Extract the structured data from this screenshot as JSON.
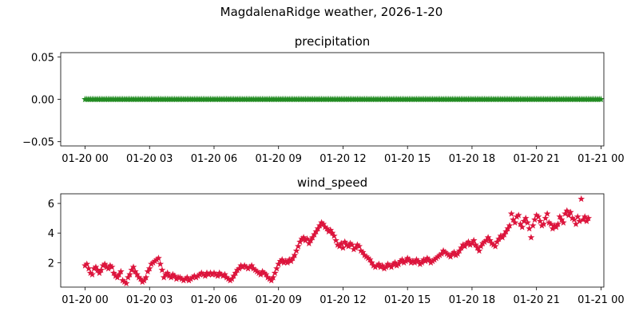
{
  "figure": {
    "suptitle": "MagdalenaRidge weather, 2026-1-20"
  },
  "chart_data": [
    {
      "type": "scatter",
      "title": "precipitation",
      "marker": "star",
      "color": "#228b22",
      "xlim": [
        "2026-01-19T22:52",
        "2026-01-21T00:08"
      ],
      "ylim": [
        -0.055,
        0.055
      ],
      "xticks": [
        {
          "value": "2026-01-20T00:00",
          "label": "01-20 00"
        },
        {
          "value": "2026-01-20T03:00",
          "label": "01-20 03"
        },
        {
          "value": "2026-01-20T06:00",
          "label": "01-20 06"
        },
        {
          "value": "2026-01-20T09:00",
          "label": "01-20 09"
        },
        {
          "value": "2026-01-20T12:00",
          "label": "01-20 12"
        },
        {
          "value": "2026-01-20T15:00",
          "label": "01-20 15"
        },
        {
          "value": "2026-01-20T18:00",
          "label": "01-20 18"
        },
        {
          "value": "2026-01-20T21:00",
          "label": "01-20 21"
        },
        {
          "value": "2026-01-21T00:00",
          "label": "01-21 00"
        }
      ],
      "yticks": [
        {
          "value": -0.05,
          "label": "−0.05"
        },
        {
          "value": 0.0,
          "label": "0.00"
        },
        {
          "value": 0.05,
          "label": "0.05"
        }
      ],
      "series": [
        {
          "x_start": "2026-01-20T00:00",
          "x_step_minutes": 5,
          "y": [
            0,
            0,
            0,
            0,
            0,
            0,
            0,
            0,
            0,
            0,
            0,
            0,
            0,
            0,
            0,
            0,
            0,
            0,
            0,
            0,
            0,
            0,
            0,
            0,
            0,
            0,
            0,
            0,
            0,
            0,
            0,
            0,
            0,
            0,
            0,
            0,
            0,
            0,
            0,
            0,
            0,
            0,
            0,
            0,
            0,
            0,
            0,
            0,
            0,
            0,
            0,
            0,
            0,
            0,
            0,
            0,
            0,
            0,
            0,
            0,
            0,
            0,
            0,
            0,
            0,
            0,
            0,
            0,
            0,
            0,
            0,
            0,
            0,
            0,
            0,
            0,
            0,
            0,
            0,
            0,
            0,
            0,
            0,
            0,
            0,
            0,
            0,
            0,
            0,
            0,
            0,
            0,
            0,
            0,
            0,
            0,
            0,
            0,
            0,
            0,
            0,
            0,
            0,
            0,
            0,
            0,
            0,
            0,
            0,
            0,
            0,
            0,
            0,
            0,
            0,
            0,
            0,
            0,
            0,
            0,
            0,
            0,
            0,
            0,
            0,
            0,
            0,
            0,
            0,
            0,
            0,
            0,
            0,
            0,
            0,
            0,
            0,
            0,
            0,
            0,
            0,
            0,
            0,
            0,
            0,
            0,
            0,
            0,
            0,
            0,
            0,
            0,
            0,
            0,
            0,
            0,
            0,
            0,
            0,
            0,
            0,
            0,
            0,
            0,
            0,
            0,
            0,
            0,
            0,
            0,
            0,
            0,
            0,
            0,
            0,
            0,
            0,
            0,
            0,
            0,
            0,
            0,
            0,
            0,
            0,
            0,
            0,
            0,
            0,
            0,
            0,
            0,
            0,
            0,
            0,
            0,
            0,
            0,
            0,
            0,
            0,
            0,
            0,
            0,
            0,
            0,
            0,
            0,
            0,
            0,
            0,
            0,
            0,
            0,
            0,
            0,
            0,
            0,
            0,
            0,
            0,
            0,
            0,
            0,
            0,
            0,
            0,
            0,
            0,
            0,
            0,
            0,
            0,
            0,
            0,
            0,
            0,
            0,
            0,
            0,
            0,
            0,
            0,
            0,
            0,
            0,
            0,
            0,
            0,
            0,
            0,
            0,
            0,
            0,
            0,
            0,
            0,
            0,
            0,
            0,
            0,
            0,
            0,
            0,
            0,
            0,
            0,
            0,
            0,
            0,
            0,
            0,
            0,
            0,
            0,
            0,
            0,
            0,
            0,
            0,
            0,
            0,
            0,
            0,
            0,
            0,
            0,
            0,
            0
          ]
        }
      ]
    },
    {
      "type": "scatter",
      "title": "wind_speed",
      "marker": "star",
      "color": "#dc143c",
      "xlim": [
        "2026-01-19T22:52",
        "2026-01-21T00:08"
      ],
      "ylim": [
        0.35,
        6.65
      ],
      "xticks": [
        {
          "value": "2026-01-20T00:00",
          "label": "01-20 00"
        },
        {
          "value": "2026-01-20T03:00",
          "label": "01-20 03"
        },
        {
          "value": "2026-01-20T06:00",
          "label": "01-20 06"
        },
        {
          "value": "2026-01-20T09:00",
          "label": "01-20 09"
        },
        {
          "value": "2026-01-20T12:00",
          "label": "01-20 12"
        },
        {
          "value": "2026-01-20T15:00",
          "label": "01-20 15"
        },
        {
          "value": "2026-01-20T18:00",
          "label": "01-20 18"
        },
        {
          "value": "2026-01-20T21:00",
          "label": "01-20 21"
        },
        {
          "value": "2026-01-21T00:00",
          "label": "01-21 00"
        }
      ],
      "yticks": [
        {
          "value": 2,
          "label": "2"
        },
        {
          "value": 4,
          "label": "4"
        },
        {
          "value": 6,
          "label": "6"
        }
      ],
      "series": [
        {
          "x_start": "2026-01-20T00:00",
          "x_step_minutes": 5,
          "y": [
            1.8,
            1.9,
            1.6,
            1.3,
            1.2,
            1.6,
            1.7,
            1.5,
            1.3,
            1.5,
            1.8,
            1.9,
            1.7,
            1.6,
            1.8,
            1.7,
            1.3,
            1.1,
            1.0,
            1.2,
            1.4,
            0.8,
            0.7,
            0.6,
            1.0,
            1.2,
            1.5,
            1.7,
            1.4,
            1.2,
            1.0,
            0.9,
            0.7,
            0.8,
            1.0,
            1.4,
            1.6,
            1.9,
            2.0,
            2.1,
            2.2,
            2.3,
            1.9,
            1.5,
            1.0,
            1.2,
            1.3,
            1.1,
            1.0,
            1.2,
            1.1,
            0.9,
            1.0,
            1.0,
            0.9,
            0.8,
            0.9,
            1.0,
            0.8,
            0.9,
            1.0,
            1.1,
            1.0,
            1.1,
            1.2,
            1.3,
            1.2,
            1.1,
            1.3,
            1.2,
            1.3,
            1.2,
            1.3,
            1.2,
            1.1,
            1.3,
            1.2,
            1.1,
            1.2,
            1.0,
            0.9,
            0.8,
            0.9,
            1.1,
            1.3,
            1.5,
            1.6,
            1.8,
            1.7,
            1.8,
            1.7,
            1.6,
            1.7,
            1.8,
            1.6,
            1.5,
            1.4,
            1.3,
            1.2,
            1.4,
            1.3,
            1.2,
            1.0,
            0.9,
            0.8,
            1.0,
            1.3,
            1.6,
            1.9,
            2.1,
            2.2,
            2.0,
            2.1,
            2.0,
            2.2,
            2.1,
            2.3,
            2.5,
            2.8,
            3.1,
            3.4,
            3.6,
            3.7,
            3.5,
            3.6,
            3.3,
            3.5,
            3.7,
            3.9,
            4.1,
            4.3,
            4.5,
            4.7,
            4.6,
            4.4,
            4.3,
            4.1,
            4.2,
            4.0,
            3.8,
            3.5,
            3.2,
            3.1,
            3.3,
            3.0,
            3.4,
            3.2,
            3.1,
            3.3,
            3.2,
            2.9,
            3.0,
            3.2,
            3.1,
            2.8,
            2.7,
            2.5,
            2.4,
            2.3,
            2.2,
            2.0,
            1.8,
            1.7,
            1.8,
            1.9,
            1.7,
            1.8,
            1.6,
            1.7,
            1.9,
            1.8,
            1.7,
            1.9,
            2.0,
            1.8,
            1.9,
            2.1,
            2.2,
            2.0,
            2.1,
            2.3,
            2.2,
            2.0,
            2.1,
            2.0,
            2.2,
            2.1,
            1.9,
            2.0,
            2.2,
            2.1,
            2.3,
            2.2,
            2.0,
            2.1,
            2.2,
            2.3,
            2.4,
            2.5,
            2.6,
            2.8,
            2.7,
            2.6,
            2.5,
            2.4,
            2.6,
            2.7,
            2.5,
            2.6,
            2.8,
            3.0,
            3.2,
            3.1,
            3.3,
            3.4,
            3.2,
            3.3,
            3.5,
            3.2,
            3.0,
            2.8,
            3.1,
            3.3,
            3.4,
            3.5,
            3.7,
            3.5,
            3.3,
            3.2,
            3.1,
            3.4,
            3.6,
            3.8,
            3.7,
            3.9,
            4.1,
            4.3,
            4.5,
            5.3,
            4.9,
            4.7,
            5.1,
            5.2,
            4.6,
            4.4,
            4.8,
            5.0,
            4.7,
            4.3,
            3.7,
            4.5,
            4.9,
            5.2,
            5.1,
            4.8,
            4.5,
            4.6,
            5.0,
            5.3,
            4.7,
            4.6,
            4.3,
            4.5,
            4.4,
            4.6,
            5.1,
            4.9,
            4.7,
            5.3,
            5.5,
            5.2,
            5.4,
            5.0,
            4.9,
            4.6,
            5.1,
            4.8,
            6.3,
            4.9,
            5.1,
            4.8,
            5.0
          ]
        }
      ]
    }
  ]
}
